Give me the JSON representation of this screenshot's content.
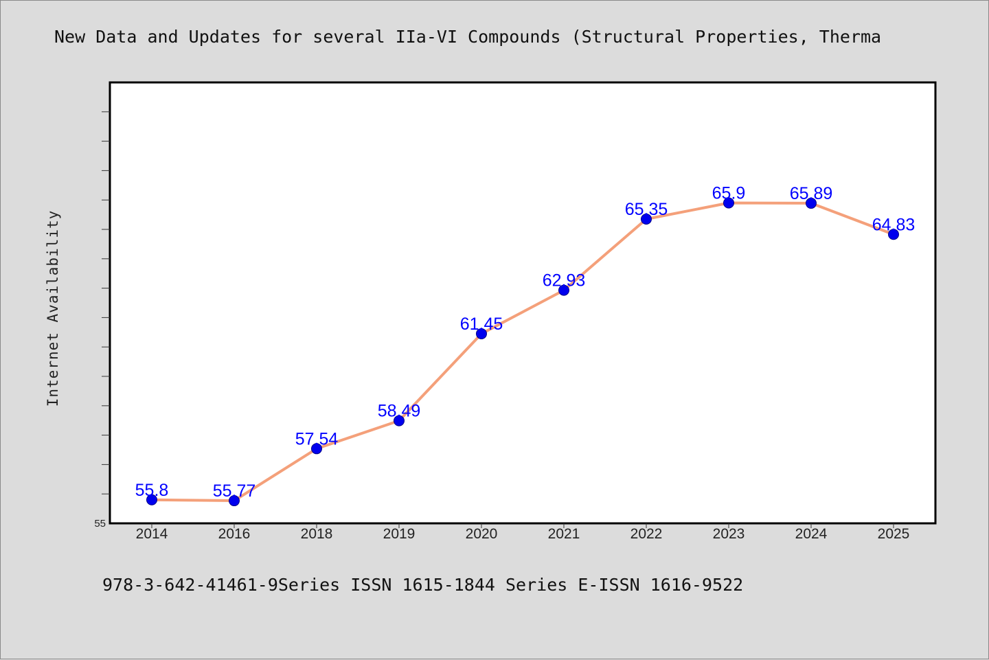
{
  "title": "New Data and Updates for several IIa-VI Compounds (Structural Properties, Therma",
  "footer": "978-3-642-41461-9Series ISSN 1615-1844 Series E-ISSN 1616-9522",
  "chart_data": {
    "type": "line",
    "title": "New Data and Updates for several IIa-VI Compounds (Structural Properties, Therma",
    "xlabel": "",
    "ylabel": "Internet Availability",
    "categories": [
      "2014",
      "2016",
      "2018",
      "2019",
      "2020",
      "2021",
      "2022",
      "2023",
      "2024",
      "2025"
    ],
    "series": [
      {
        "values": [
          55.8,
          55.77,
          57.54,
          58.49,
          61.45,
          62.93,
          65.35,
          65.9,
          65.89,
          64.83
        ],
        "labels": [
          "55.8",
          "55.77",
          "57.54",
          "58.49",
          "61.45",
          "62.93",
          "65.35",
          "65.9",
          "65.89",
          "64.83"
        ],
        "line_color": "#f4a07a",
        "marker_color": "#0000ee"
      }
    ],
    "ylim": [
      55,
      70
    ],
    "ytick_labels": [
      "55"
    ],
    "grid": false,
    "legend": "none",
    "label_color": "#0000ff"
  }
}
